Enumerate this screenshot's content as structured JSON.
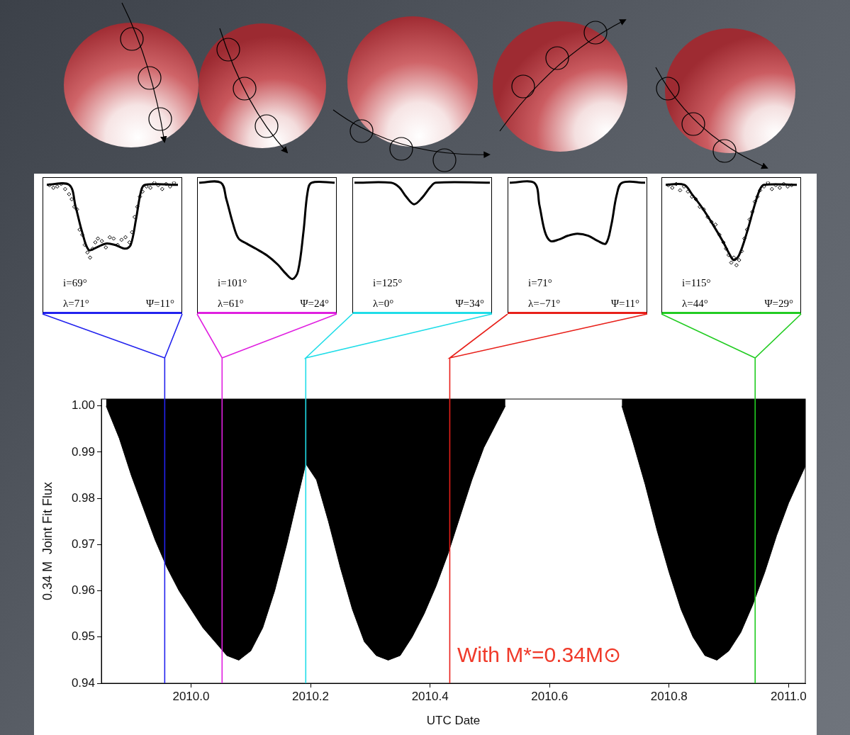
{
  "chart_data": [
    {
      "type": "line",
      "x_label": "UTC Date",
      "y_label": "0.34 M  Joint Fit Flux",
      "annotations": [
        {
          "text": "With M*=0.34M⊙",
          "color": "#f03a2a"
        }
      ],
      "color": "#000000",
      "x": [
        2009.858,
        2009.88,
        2009.9,
        2009.92,
        2009.94,
        2009.96,
        2009.98,
        2010.0,
        2010.02,
        2010.04,
        2010.06,
        2010.08,
        2010.1,
        2010.12,
        2010.14,
        2010.16,
        2010.18,
        2010.192,
        2010.21,
        2010.23,
        2010.25,
        2010.27,
        2010.29,
        2010.31,
        2010.33,
        2010.35,
        2010.37,
        2010.39,
        2010.41,
        2010.43,
        2010.45,
        2010.47,
        2010.49,
        2010.51,
        2010.526,
        2010.62,
        2010.721,
        2010.74,
        2010.76,
        2010.78,
        2010.8,
        2010.82,
        2010.84,
        2010.86,
        2010.88,
        2010.9,
        2010.92,
        2010.94,
        2010.96,
        2010.98,
        2011.0,
        2011.028
      ],
      "values": [
        1.0,
        0.993,
        0.985,
        0.978,
        0.971,
        0.965,
        0.96,
        0.956,
        0.952,
        0.949,
        0.946,
        0.945,
        0.947,
        0.952,
        0.96,
        0.97,
        0.981,
        0.9875,
        0.984,
        0.975,
        0.965,
        0.956,
        0.949,
        0.946,
        0.945,
        0.946,
        0.95,
        0.955,
        0.961,
        0.968,
        0.976,
        0.984,
        0.991,
        0.996,
        1.0,
        null,
        1.0,
        0.992,
        0.983,
        0.973,
        0.964,
        0.956,
        0.95,
        0.946,
        0.945,
        0.947,
        0.951,
        0.957,
        0.964,
        0.972,
        0.979,
        0.987
      ],
      "xlim": [
        2009.85,
        2011.028
      ],
      "ylim": [
        0.94,
        1.0015
      ],
      "xticks": [
        {
          "value": 2010.0,
          "label": "2010.0"
        },
        {
          "value": 2010.2,
          "label": "2010.2"
        },
        {
          "value": 2010.4,
          "label": "2010.4"
        },
        {
          "value": 2010.6,
          "label": "2010.6"
        },
        {
          "value": 2010.8,
          "label": "2010.8"
        },
        {
          "value": 2011.0,
          "label": "2011.0"
        }
      ],
      "yticks": [
        {
          "value": 0.94,
          "label": "0.94"
        },
        {
          "value": 0.95,
          "label": "0.95"
        },
        {
          "value": 0.96,
          "label": "0.96"
        },
        {
          "value": 0.97,
          "label": "0.97"
        },
        {
          "value": 0.98,
          "label": "0.98"
        },
        {
          "value": 0.99,
          "label": "0.99"
        },
        {
          "value": 1.0,
          "label": "1.00"
        }
      ],
      "grid": false,
      "marker_lines": [
        {
          "x": 2009.956,
          "color": "#2222ee"
        },
        {
          "x": 2010.052,
          "color": "#e020e0"
        },
        {
          "x": 2010.192,
          "color": "#20dde8"
        },
        {
          "x": 2010.433,
          "color": "#e8201a"
        },
        {
          "x": 2010.944,
          "color": "#22cc22"
        }
      ]
    },
    {
      "type": "line",
      "xlim": [
        0,
        1
      ],
      "ylim": [
        0,
        1
      ],
      "tick_labels": false,
      "annotations": [
        {
          "text": "i=69°"
        },
        {
          "text": "λ=71°"
        },
        {
          "text": "Ψ=11°"
        }
      ],
      "series": [
        {
          "type": "line",
          "color": "#000000",
          "x": [
            0,
            0.17,
            0.22,
            0.27,
            0.32,
            0.38,
            0.45,
            0.52,
            0.6,
            0.64,
            0.68,
            0.72,
            0.75,
            1
          ],
          "values": [
            0.974,
            0.974,
            0.8,
            0.6,
            0.46,
            0.48,
            0.51,
            0.5,
            0.47,
            0.5,
            0.7,
            0.93,
            0.974,
            0.974
          ]
        },
        {
          "type": "scatter",
          "marker": "diamond",
          "color": "#000000",
          "x": [
            0.02,
            0.05,
            0.08,
            0.11,
            0.14,
            0.17,
            0.19,
            0.21,
            0.23,
            0.25,
            0.27,
            0.29,
            0.31,
            0.33,
            0.35,
            0.37,
            0.39,
            0.42,
            0.45,
            0.48,
            0.51,
            0.54,
            0.57,
            0.6,
            0.63,
            0.65,
            0.67,
            0.69,
            0.71,
            0.73,
            0.76,
            0.79,
            0.82,
            0.85,
            0.88,
            0.91,
            0.94,
            0.97
          ],
          "values": [
            0.97,
            0.95,
            0.96,
            0.98,
            0.94,
            0.9,
            0.86,
            0.8,
            0.78,
            0.62,
            0.58,
            0.5,
            0.44,
            0.4,
            0.47,
            0.52,
            0.55,
            0.53,
            0.48,
            0.56,
            0.55,
            0.5,
            0.54,
            0.56,
            0.52,
            0.6,
            0.72,
            0.8,
            0.88,
            0.92,
            0.96,
            0.95,
            0.99,
            0.97,
            0.94,
            0.98,
            0.96,
            0.99
          ]
        }
      ]
    },
    {
      "type": "line",
      "xlim": [
        0,
        1
      ],
      "ylim": [
        0,
        1
      ],
      "tick_labels": false,
      "annotations": [
        {
          "text": "i=101°"
        },
        {
          "text": "λ=61°"
        },
        {
          "text": "Ψ=24°"
        }
      ],
      "series": [
        {
          "type": "line",
          "color": "#000000",
          "x": [
            0,
            0.16,
            0.2,
            0.25,
            0.29,
            0.35,
            0.42,
            0.5,
            0.58,
            0.64,
            0.69,
            0.73,
            0.77,
            0.8,
            0.83,
            1
          ],
          "values": [
            0.974,
            0.974,
            0.85,
            0.66,
            0.55,
            0.51,
            0.47,
            0.42,
            0.35,
            0.28,
            0.24,
            0.3,
            0.6,
            0.9,
            0.974,
            0.974
          ]
        }
      ]
    },
    {
      "type": "line",
      "xlim": [
        0,
        1
      ],
      "ylim": [
        0,
        1
      ],
      "tick_labels": false,
      "annotations": [
        {
          "text": "i=125°"
        },
        {
          "text": "λ=0°"
        },
        {
          "text": "Ψ=34°"
        }
      ],
      "series": [
        {
          "type": "line",
          "color": "#000000",
          "x": [
            0,
            0.27,
            0.33,
            0.38,
            0.44,
            0.5,
            0.56,
            0.6,
            1
          ],
          "values": [
            0.974,
            0.974,
            0.94,
            0.87,
            0.81,
            0.86,
            0.94,
            0.974,
            0.974
          ]
        }
      ]
    },
    {
      "type": "line",
      "xlim": [
        0,
        1
      ],
      "ylim": [
        0,
        1
      ],
      "tick_labels": false,
      "annotations": [
        {
          "text": "i=71°"
        },
        {
          "text": "λ=−71°"
        },
        {
          "text": "Ψ=11°"
        }
      ],
      "series": [
        {
          "type": "line",
          "color": "#000000",
          "x": [
            0,
            0.18,
            0.22,
            0.26,
            0.3,
            0.36,
            0.43,
            0.5,
            0.58,
            0.65,
            0.71,
            0.75,
            0.79,
            0.83,
            1
          ],
          "values": [
            0.974,
            0.974,
            0.8,
            0.6,
            0.53,
            0.54,
            0.57,
            0.585,
            0.57,
            0.53,
            0.51,
            0.65,
            0.88,
            0.974,
            0.974
          ]
        }
      ]
    },
    {
      "type": "line",
      "xlim": [
        0,
        1
      ],
      "ylim": [
        0,
        1
      ],
      "tick_labels": false,
      "annotations": [
        {
          "text": "i=115°"
        },
        {
          "text": "λ=44°"
        },
        {
          "text": "Ψ=29°"
        }
      ],
      "series": [
        {
          "type": "line",
          "color": "#000000",
          "x": [
            0,
            0.14,
            0.2,
            0.28,
            0.36,
            0.44,
            0.49,
            0.52,
            0.56,
            0.62,
            0.68,
            0.72,
            0.75,
            1
          ],
          "values": [
            0.974,
            0.974,
            0.9,
            0.79,
            0.66,
            0.52,
            0.42,
            0.38,
            0.42,
            0.6,
            0.82,
            0.94,
            0.974,
            0.974
          ]
        },
        {
          "type": "scatter",
          "marker": "diamond",
          "color": "#000000",
          "x": [
            0.02,
            0.05,
            0.08,
            0.11,
            0.14,
            0.17,
            0.2,
            0.23,
            0.26,
            0.29,
            0.32,
            0.35,
            0.38,
            0.41,
            0.44,
            0.46,
            0.48,
            0.5,
            0.52,
            0.54,
            0.56,
            0.58,
            0.6,
            0.62,
            0.64,
            0.66,
            0.68,
            0.7,
            0.72,
            0.75,
            0.78,
            0.81,
            0.84,
            0.87,
            0.9,
            0.93,
            0.96
          ],
          "values": [
            0.97,
            0.95,
            0.98,
            0.93,
            0.96,
            0.92,
            0.88,
            0.86,
            0.8,
            0.78,
            0.72,
            0.68,
            0.66,
            0.58,
            0.52,
            0.47,
            0.42,
            0.36,
            0.4,
            0.34,
            0.38,
            0.45,
            0.55,
            0.62,
            0.7,
            0.76,
            0.84,
            0.88,
            0.93,
            0.96,
            0.99,
            0.94,
            0.97,
            0.95,
            0.98,
            0.96,
            0.97
          ]
        }
      ]
    }
  ]
}
